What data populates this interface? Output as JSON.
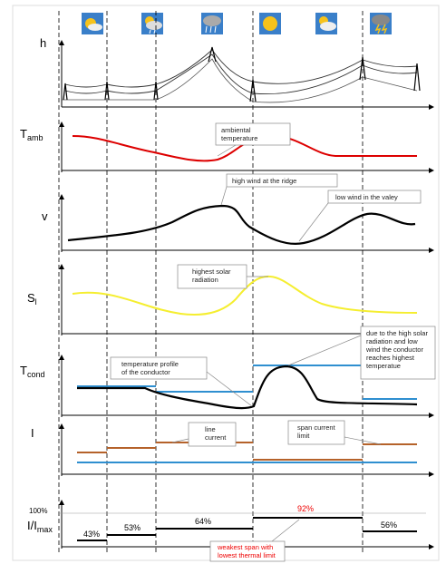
{
  "axes": {
    "h": "h",
    "t_amb": {
      "main": "T",
      "sub": "amb"
    },
    "v": "v",
    "s": {
      "main": "S",
      "sub": "l"
    },
    "t_cond": {
      "main": "T",
      "sub": "cond"
    },
    "i": "I",
    "ratio": {
      "main": "I/I",
      "sub": "max"
    }
  },
  "annotations": {
    "ambient": [
      "ambiental",
      "temperature"
    ],
    "high_wind": [
      "high wind at the ridge"
    ],
    "low_wind": [
      "low wind in the valey"
    ],
    "solar": [
      "highest solar",
      "radiation"
    ],
    "profile": [
      "temperature profile",
      "of the conductor"
    ],
    "hot": [
      "due to the high solar",
      "radiation and low",
      "wind the conductor",
      "reaches highest",
      "temperatue"
    ],
    "line_current": [
      "line",
      "current"
    ],
    "span_limit": [
      "span current",
      "limit"
    ],
    "weakest": [
      "weakest span with",
      "lowest thermal limit"
    ]
  },
  "ratio_axis_label": "100%",
  "ratio_labels": [
    "43%",
    "53%",
    "64%",
    "92%",
    "56%"
  ]
}
